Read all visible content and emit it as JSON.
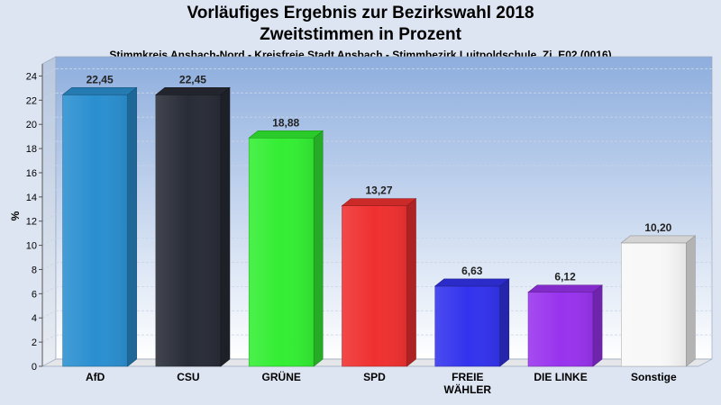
{
  "chart_data": {
    "type": "bar",
    "title": "Vorläufiges Ergebnis zur Bezirkswahl 2018",
    "subtitle": "Zweitstimmen in Prozent",
    "subtitle2": "Stimmkreis Ansbach-Nord - Kreisfreie Stadt Ansbach - Stimmbezirk Luitpoldschule, Zi. E02 (0016)",
    "ylabel": "%",
    "ylim": [
      0,
      25
    ],
    "yticks": [
      0,
      2,
      4,
      6,
      8,
      10,
      12,
      14,
      16,
      18,
      20,
      22,
      24
    ],
    "grid": true,
    "categories": [
      "AfD",
      "CSU",
      "GRÜNE",
      "SPD",
      "FREIE\nWÄHLER",
      "DIE LINKE",
      "Sonstige"
    ],
    "values": [
      22.45,
      22.45,
      18.88,
      13.27,
      6.63,
      6.12,
      10.2
    ],
    "value_labels": [
      "22,45",
      "22,45",
      "18,88",
      "13,27",
      "6,63",
      "6,12",
      "10,20"
    ],
    "colors": [
      "#2a8fd0",
      "#282c36",
      "#33ee33",
      "#f03030",
      "#3333ee",
      "#9933ee",
      "#f8f8f8"
    ]
  }
}
